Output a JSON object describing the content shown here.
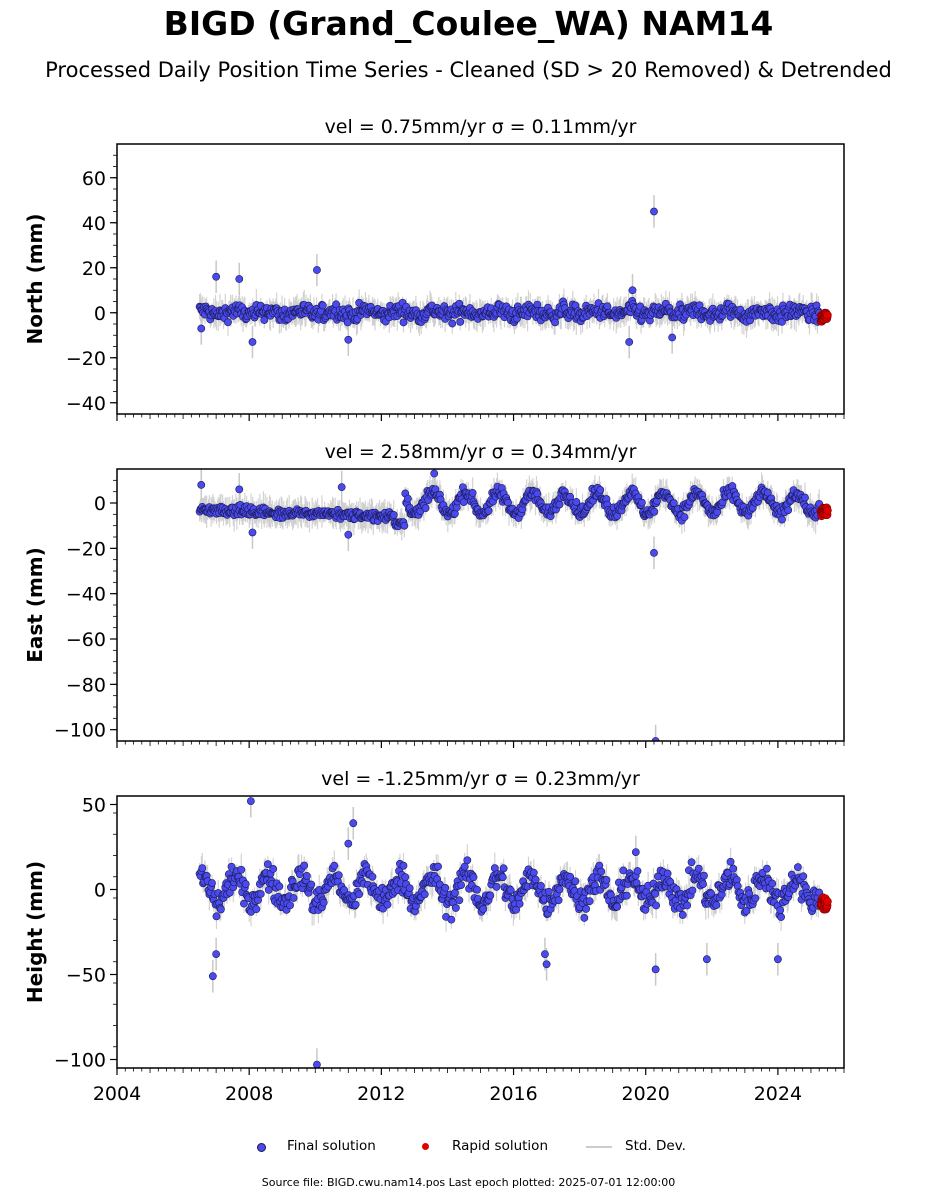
{
  "title": "BIGD (Grand_Coulee_WA) NAM14",
  "subtitle": "Processed Daily Position Time Series - Cleaned (SD > 20 Removed) & Detrended",
  "source": "Source file: BIGD.cwu.nam14.pos  Last epoch plotted: 2025-07-01 12:00:00",
  "legend": {
    "final": "Final solution",
    "rapid": "Rapid solution",
    "std": "Std. Dev."
  },
  "colors": {
    "final": "#4a4aef",
    "final_edge": "#1a1a50",
    "rapid": "#e00000",
    "std": "#c8c8c8"
  },
  "chart_data": [
    {
      "type": "scatter",
      "panel": "north",
      "title": "vel = 0.75mm/yr   σ = 0.11mm/yr",
      "ylabel": "North (mm)",
      "xlim": [
        2004,
        2026
      ],
      "ylim": [
        -45,
        75
      ],
      "yticks": [
        -40,
        -20,
        0,
        20,
        40,
        60
      ],
      "ytick_labels": [
        "−40",
        "−20",
        "0",
        "20",
        "40",
        "60"
      ],
      "xticks": [
        2004,
        2008,
        2012,
        2016,
        2020,
        2024
      ],
      "series": [
        {
          "name": "Final solution",
          "data_start": 2006.5,
          "data_end": 2025.25,
          "amplitude": 2.5,
          "seasonal_amp": 1.0,
          "outliers": [
            [
              2006.55,
              -7
            ],
            [
              2007.0,
              16
            ],
            [
              2007.7,
              15
            ],
            [
              2008.1,
              -13
            ],
            [
              2010.05,
              19
            ],
            [
              2011.0,
              -12
            ],
            [
              2019.5,
              -13
            ],
            [
              2020.25,
              45
            ],
            [
              2020.8,
              -11
            ],
            [
              2019.6,
              10
            ]
          ]
        },
        {
          "name": "Rapid solution",
          "data_start": 2025.3,
          "data_end": 2025.5,
          "center": -2,
          "amplitude": 2
        }
      ]
    },
    {
      "type": "scatter",
      "panel": "east",
      "title": "vel = 2.58mm/yr   σ = 0.34mm/yr",
      "ylabel": "East (mm)",
      "xlim": [
        2004,
        2026
      ],
      "ylim": [
        -105,
        15
      ],
      "yticks": [
        -100,
        -80,
        -60,
        -40,
        -20,
        0
      ],
      "ytick_labels": [
        "−100",
        "−80",
        "−60",
        "−40",
        "−20",
        "0"
      ],
      "xticks": [
        2004,
        2008,
        2012,
        2016,
        2020,
        2024
      ],
      "series": [
        {
          "name": "Final solution",
          "data_start": 2006.5,
          "data_end": 2025.25,
          "amplitude": 2.0,
          "seasonal_amp": 4.5,
          "outliers": [
            [
              2006.55,
              8
            ],
            [
              2007.7,
              6
            ],
            [
              2008.1,
              -13
            ],
            [
              2011.0,
              -14
            ],
            [
              2010.8,
              7
            ],
            [
              2013.6,
              13
            ],
            [
              2020.25,
              -22
            ],
            [
              2020.3,
              -105
            ]
          ]
        },
        {
          "name": "Rapid solution",
          "data_start": 2025.3,
          "data_end": 2025.5,
          "center": -4,
          "amplitude": 2
        }
      ]
    },
    {
      "type": "scatter",
      "panel": "height",
      "title": "vel = -1.25mm/yr   σ = 0.23mm/yr",
      "ylabel": "Height (mm)",
      "xlim": [
        2004,
        2026
      ],
      "ylim": [
        -105,
        55
      ],
      "yticks": [
        -100,
        -50,
        0,
        50
      ],
      "ytick_labels": [
        "−100",
        "−50",
        "0",
        "50"
      ],
      "xticks": [
        2004,
        2008,
        2012,
        2016,
        2020,
        2024
      ],
      "series": [
        {
          "name": "Final solution",
          "data_start": 2006.5,
          "data_end": 2025.25,
          "amplitude": 6.0,
          "seasonal_amp": 8.0,
          "outliers": [
            [
              2006.9,
              -51
            ],
            [
              2007.0,
              -38
            ],
            [
              2008.05,
              52
            ],
            [
              2010.05,
              -103
            ],
            [
              2011.0,
              27
            ],
            [
              2011.15,
              39
            ],
            [
              2017.0,
              -44
            ],
            [
              2019.7,
              22
            ],
            [
              2020.3,
              -47
            ],
            [
              2021.85,
              -41
            ],
            [
              2024.0,
              -41
            ],
            [
              2016.95,
              -38
            ]
          ]
        },
        {
          "name": "Rapid solution",
          "data_start": 2025.3,
          "data_end": 2025.5,
          "center": -8,
          "amplitude": 4
        }
      ]
    }
  ]
}
